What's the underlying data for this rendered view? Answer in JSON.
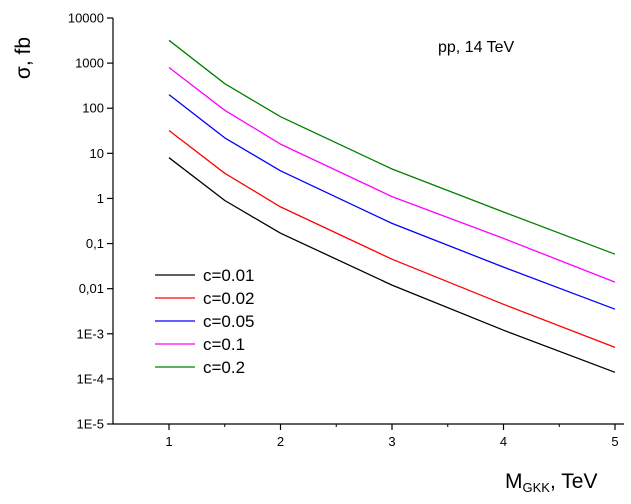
{
  "chart_data": {
    "type": "line",
    "title": "",
    "annotation": "pp, 14 TeV",
    "ylabel": "σ, fb",
    "xlabel": {
      "main": "M",
      "subscript": "GKK",
      "suffix": ", TeV"
    },
    "x_scale": "linear",
    "y_scale": "log",
    "xlim": [
      0.5,
      5.08
    ],
    "ylim": [
      1e-05,
      10000
    ],
    "x_ticks": [
      {
        "value": 1,
        "label": "1"
      },
      {
        "value": 2,
        "label": "2"
      },
      {
        "value": 3,
        "label": "3"
      },
      {
        "value": 4,
        "label": "4"
      },
      {
        "value": 5,
        "label": "5"
      }
    ],
    "y_ticks": [
      {
        "value": 10000,
        "label": "10000"
      },
      {
        "value": 1000,
        "label": "1000"
      },
      {
        "value": 100,
        "label": "100"
      },
      {
        "value": 10,
        "label": "10"
      },
      {
        "value": 1,
        "label": "1"
      },
      {
        "value": 0.1,
        "label": "0,1"
      },
      {
        "value": 0.01,
        "label": "0,01"
      },
      {
        "value": 0.001,
        "label": "1E-3"
      },
      {
        "value": 0.0001,
        "label": "1E-4"
      },
      {
        "value": 1e-05,
        "label": "1E-5"
      }
    ],
    "grid": false,
    "legend_position": "bottom-left",
    "x": [
      1,
      1.5,
      2,
      3,
      4,
      5
    ],
    "series": [
      {
        "name": "c=0.01",
        "color": "#000000",
        "values": [
          8,
          0.9,
          0.17,
          0.012,
          0.0012,
          0.00014
        ]
      },
      {
        "name": "c=0.02",
        "color": "#ff0000",
        "values": [
          32,
          3.6,
          0.65,
          0.045,
          0.0045,
          0.0005
        ]
      },
      {
        "name": "c=0.05",
        "color": "#0000ff",
        "values": [
          200,
          22,
          4.1,
          0.28,
          0.03,
          0.0035
        ]
      },
      {
        "name": "c=0.1",
        "color": "#ff00ff",
        "values": [
          800,
          90,
          16,
          1.1,
          0.13,
          0.014
        ]
      },
      {
        "name": "c=0.2",
        "color": "#008000",
        "values": [
          3200,
          350,
          65,
          4.5,
          0.5,
          0.058
        ]
      }
    ]
  }
}
